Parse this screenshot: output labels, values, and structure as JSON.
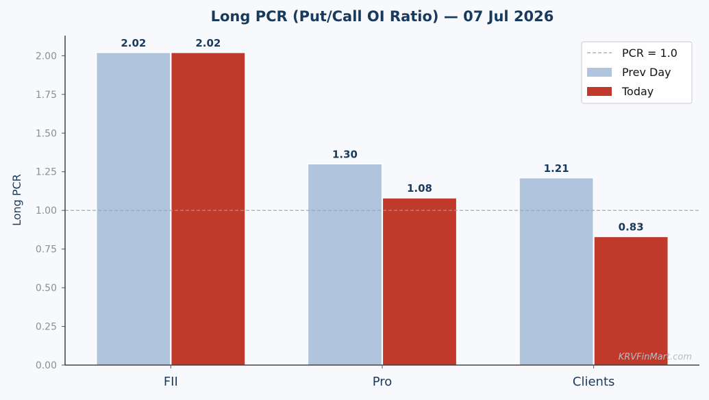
{
  "chart_data": {
    "type": "bar",
    "title": "Long PCR (Put/Call OI Ratio) — 07 Jul 2026",
    "xlabel": "",
    "ylabel": "Long PCR",
    "categories": [
      "FII",
      "Pro",
      "Clients"
    ],
    "series": [
      {
        "name": "Prev Day",
        "values": [
          2.02,
          1.3,
          1.21
        ],
        "color": "#b0c4de"
      },
      {
        "name": "Today",
        "values": [
          2.02,
          1.08,
          0.83
        ],
        "color": "#c0392b"
      }
    ],
    "data_labels": [
      [
        "2.02",
        "1.30",
        "1.21"
      ],
      [
        "2.02",
        "1.08",
        "0.83"
      ]
    ],
    "ylim": [
      0,
      2.13
    ],
    "yticks": [
      "0.00",
      "0.25",
      "0.50",
      "0.75",
      "1.00",
      "1.25",
      "1.50",
      "1.75",
      "2.00"
    ],
    "reference_line": {
      "value": 1.0,
      "label": "PCR = 1.0",
      "style": "dashed",
      "color": "#8fa3ba"
    },
    "legend": {
      "position": "top-right",
      "entries": [
        "PCR = 1.0",
        "Prev Day",
        "Today"
      ]
    },
    "grid": false
  },
  "watermark": "KRVFinMart.com"
}
